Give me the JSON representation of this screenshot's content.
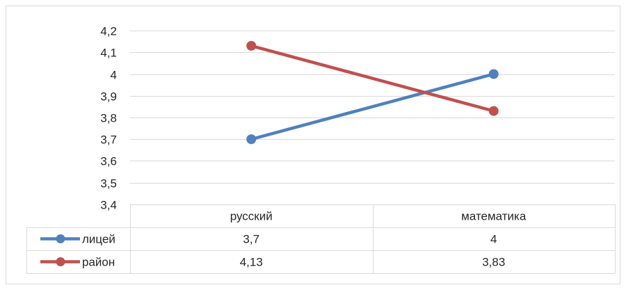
{
  "chart_data": {
    "type": "line",
    "title": "",
    "xlabel": "",
    "ylabel": "",
    "categories": [
      "русский",
      "математика"
    ],
    "ylim": [
      3.4,
      4.2
    ],
    "yticks": [
      "3,4",
      "3,5",
      "3,6",
      "3,7",
      "3,8",
      "3,9",
      "4",
      "4,1",
      "4,2"
    ],
    "grid": true,
    "legend": "data-table",
    "series": [
      {
        "name": "лицей",
        "values": [
          3.7,
          4.0
        ],
        "labels": [
          "3,7",
          "4"
        ],
        "color": "#4f81bd"
      },
      {
        "name": "район",
        "values": [
          4.13,
          3.83
        ],
        "labels": [
          "4,13",
          "3,83"
        ],
        "color": "#c0504d"
      }
    ]
  }
}
